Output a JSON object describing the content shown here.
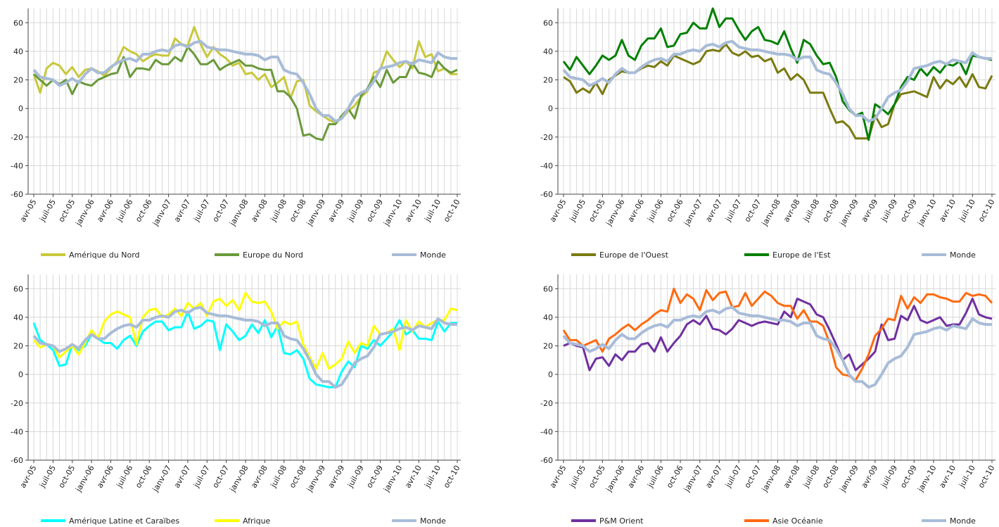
{
  "chart_data": [
    {
      "type": "line",
      "ylim": [
        -60,
        70
      ],
      "yticks": [
        -60,
        -40,
        -20,
        0,
        20,
        40,
        60
      ],
      "grid": true,
      "categories": [
        "avr-05",
        null,
        null,
        "juil-05",
        null,
        null,
        "oct-05",
        null,
        null,
        "janv-06",
        null,
        null,
        "avr-06",
        null,
        null,
        "juil-06",
        null,
        null,
        "oct-06",
        null,
        null,
        "janv-07",
        null,
        null,
        "avr-07",
        null,
        null,
        "juil-07",
        null,
        null,
        "oct-07",
        null,
        null,
        "janv-08",
        null,
        null,
        "avr-08",
        null,
        null,
        "juil-08",
        null,
        null,
        "oct-08",
        null,
        null,
        "janv-09",
        null,
        null,
        "avr-09",
        null,
        null,
        "juil-09",
        null,
        null,
        "oct-09",
        null,
        null,
        "janv-10",
        null,
        null,
        "avr-10",
        null,
        null,
        "juil-10",
        null,
        null,
        "oct-10"
      ],
      "series": [
        {
          "name": "Amérique du Nord",
          "color": "#c8c83c",
          "values": [
            24,
            11,
            28,
            32,
            30,
            24,
            29,
            22,
            27,
            28,
            26,
            23,
            28,
            33,
            43,
            40,
            38,
            33,
            36,
            38,
            37,
            37,
            49,
            45,
            44,
            57,
            45,
            36,
            43,
            38,
            35,
            30,
            32,
            24,
            25,
            20,
            24,
            15,
            18,
            22,
            7,
            19,
            20,
            2,
            -2,
            -5,
            -8,
            -10,
            -7,
            -2,
            2,
            8,
            12,
            25,
            27,
            40,
            34,
            29,
            33,
            28,
            47,
            36,
            38,
            26,
            28,
            24,
            24
          ]
        },
        {
          "name": "Europe du Nord",
          "color": "#6a9a3a",
          "values": [
            24,
            20,
            16,
            20,
            17,
            20,
            10,
            19,
            17,
            16,
            20,
            22,
            24,
            25,
            36,
            22,
            28,
            28,
            27,
            34,
            31,
            31,
            36,
            33,
            43,
            38,
            31,
            31,
            34,
            27,
            30,
            32,
            34,
            30,
            30,
            28,
            27,
            27,
            12,
            12,
            8,
            0,
            -19,
            -18,
            -21,
            -22,
            -11,
            -11,
            -5,
            0,
            -7,
            9,
            14,
            22,
            15,
            27,
            18,
            22,
            22,
            32,
            25,
            24,
            22,
            33,
            28,
            25,
            27
          ]
        },
        {
          "name": "Monde",
          "color": "#a8bcd8",
          "values": [
            27,
            22,
            21,
            20,
            16,
            18,
            21,
            18,
            24,
            28,
            25,
            25,
            29,
            32,
            34,
            35,
            33,
            38,
            38,
            40,
            41,
            40,
            44,
            45,
            43,
            46,
            47,
            43,
            42,
            41,
            41,
            40,
            39,
            38,
            38,
            37,
            34,
            36,
            36,
            27,
            25,
            24,
            18,
            10,
            0,
            -5,
            -5,
            -9,
            -7,
            0,
            8,
            11,
            13,
            19,
            28,
            29,
            30,
            32,
            33,
            31,
            34,
            33,
            32,
            39,
            36,
            35,
            35
          ]
        }
      ]
    },
    {
      "type": "line",
      "ylim": [
        -60,
        70
      ],
      "yticks": [
        -60,
        -40,
        -20,
        0,
        20,
        40,
        60
      ],
      "grid": true,
      "categories": [
        "avr-05",
        null,
        null,
        "juil-05",
        null,
        null,
        "oct-05",
        null,
        null,
        "janv-06",
        null,
        null,
        "avr-06",
        null,
        null,
        "juil-06",
        null,
        null,
        "oct-06",
        null,
        null,
        "janv-07",
        null,
        null,
        "avr-07",
        null,
        null,
        "juil-07",
        null,
        null,
        "oct-07",
        null,
        null,
        "janv-08",
        null,
        null,
        "avr-08",
        null,
        null,
        "juil-08",
        null,
        null,
        "oct-08",
        null,
        null,
        "janv-09",
        null,
        null,
        "avr-09",
        null,
        null,
        "juil-09",
        null,
        null,
        "oct-09",
        null,
        null,
        "janv-10",
        null,
        null,
        "avr-10",
        null,
        null,
        "juil-10",
        null,
        null,
        "oct-10"
      ],
      "series": [
        {
          "name": "Europe de l'Ouest",
          "color": "#7a7a10",
          "values": [
            22,
            19,
            11,
            14,
            11,
            18,
            10,
            20,
            23,
            26,
            25,
            25,
            28,
            30,
            29,
            33,
            30,
            37,
            35,
            33,
            31,
            33,
            40,
            41,
            40,
            45,
            39,
            37,
            40,
            36,
            37,
            33,
            35,
            25,
            28,
            20,
            24,
            20,
            11,
            11,
            11,
            0,
            -10,
            -9,
            -13,
            -21,
            -21,
            -21,
            -5,
            -13,
            -11,
            3,
            10,
            11,
            12,
            10,
            8,
            22,
            14,
            20,
            17,
            22,
            15,
            24,
            15,
            14,
            23
          ]
        },
        {
          "name": "Europe de l'Est",
          "color": "#008000",
          "values": [
            33,
            27,
            36,
            30,
            24,
            30,
            37,
            34,
            37,
            48,
            37,
            34,
            44,
            49,
            49,
            56,
            43,
            44,
            52,
            53,
            60,
            56,
            56,
            70,
            57,
            63,
            63,
            55,
            48,
            54,
            57,
            48,
            47,
            45,
            54,
            42,
            32,
            48,
            45,
            37,
            31,
            32,
            22,
            5,
            -1,
            -5,
            -3,
            -22,
            3,
            0,
            -4,
            3,
            15,
            22,
            20,
            28,
            23,
            29,
            25,
            31,
            30,
            33,
            24,
            37,
            36,
            35,
            34
          ]
        },
        {
          "name": "Monde",
          "color": "#a8bcd8",
          "values": [
            27,
            22,
            21,
            20,
            16,
            18,
            21,
            18,
            24,
            28,
            25,
            25,
            29,
            32,
            34,
            35,
            33,
            38,
            38,
            40,
            41,
            40,
            44,
            45,
            43,
            46,
            47,
            43,
            42,
            41,
            41,
            40,
            39,
            38,
            38,
            37,
            34,
            36,
            36,
            27,
            25,
            24,
            18,
            10,
            0,
            -5,
            -5,
            -9,
            -7,
            0,
            8,
            11,
            13,
            19,
            28,
            29,
            30,
            32,
            33,
            31,
            34,
            33,
            32,
            39,
            36,
            35,
            35
          ]
        }
      ]
    },
    {
      "type": "line",
      "ylim": [
        -60,
        70
      ],
      "yticks": [
        -60,
        -40,
        -20,
        0,
        20,
        40,
        60
      ],
      "grid": true,
      "categories": [
        "avr-05",
        null,
        null,
        "juil-05",
        null,
        null,
        "oct-05",
        null,
        null,
        "janv-06",
        null,
        null,
        "avr-06",
        null,
        null,
        "juil-06",
        null,
        null,
        "oct-06",
        null,
        null,
        "janv-07",
        null,
        null,
        "avr-07",
        null,
        null,
        "juil-07",
        null,
        null,
        "oct-07",
        null,
        null,
        "janv-08",
        null,
        null,
        "avr-08",
        null,
        null,
        "juil-08",
        null,
        null,
        "oct-08",
        null,
        null,
        "janv-09",
        null,
        null,
        "avr-09",
        null,
        null,
        "juil-09",
        null,
        null,
        "oct-09",
        null,
        null,
        "janv-10",
        null,
        null,
        "avr-10",
        null,
        null,
        "juil-10",
        null,
        null,
        "oct-10"
      ],
      "series": [
        {
          "name": "Amérique Latine et Caraïbes",
          "color": "#00ffff",
          "values": [
            36,
            24,
            21,
            17,
            6,
            7,
            21,
            17,
            20,
            28,
            25,
            22,
            22,
            18,
            24,
            27,
            20,
            30,
            34,
            37,
            37,
            31,
            33,
            33,
            44,
            32,
            34,
            38,
            37,
            17,
            35,
            30,
            24,
            27,
            35,
            29,
            38,
            26,
            34,
            15,
            14,
            17,
            11,
            -3,
            -7,
            -8,
            -9,
            -9,
            2,
            9,
            5,
            20,
            18,
            24,
            20,
            25,
            30,
            38,
            28,
            31,
            25,
            25,
            24,
            37,
            30,
            36,
            36
          ]
        },
        {
          "name": "Afrique",
          "color": "#ffff00",
          "values": [
            24,
            19,
            21,
            20,
            12,
            16,
            20,
            14,
            22,
            31,
            25,
            37,
            42,
            44,
            42,
            40,
            21,
            40,
            45,
            46,
            40,
            42,
            46,
            41,
            50,
            46,
            50,
            41,
            51,
            53,
            48,
            52,
            45,
            57,
            51,
            50,
            51,
            44,
            32,
            37,
            35,
            37,
            21,
            12,
            4,
            15,
            4,
            7,
            11,
            23,
            15,
            22,
            20,
            34,
            28,
            29,
            32,
            17,
            38,
            30,
            37,
            33,
            36,
            38,
            38,
            46,
            45
          ]
        },
        {
          "name": "Monde",
          "color": "#a8bcd8",
          "values": [
            27,
            22,
            21,
            20,
            16,
            18,
            21,
            18,
            24,
            28,
            25,
            25,
            29,
            32,
            34,
            35,
            33,
            38,
            38,
            40,
            41,
            40,
            44,
            45,
            43,
            46,
            47,
            43,
            42,
            41,
            41,
            40,
            39,
            38,
            38,
            37,
            34,
            36,
            36,
            27,
            25,
            24,
            18,
            10,
            0,
            -5,
            -5,
            -9,
            -7,
            0,
            8,
            11,
            13,
            19,
            28,
            29,
            30,
            32,
            33,
            31,
            34,
            33,
            32,
            39,
            36,
            35,
            35
          ]
        }
      ]
    },
    {
      "type": "line",
      "ylim": [
        -60,
        70
      ],
      "yticks": [
        -60,
        -40,
        -20,
        0,
        20,
        40,
        60
      ],
      "grid": true,
      "categories": [
        "avr-05",
        null,
        null,
        "juil-05",
        null,
        null,
        "oct-05",
        null,
        null,
        "janv-06",
        null,
        null,
        "avr-06",
        null,
        null,
        "juil-06",
        null,
        null,
        "oct-06",
        null,
        null,
        "janv-07",
        null,
        null,
        "avr-07",
        null,
        null,
        "juil-07",
        null,
        null,
        "oct-07",
        null,
        null,
        "janv-08",
        null,
        null,
        "avr-08",
        null,
        null,
        "juil-08",
        null,
        null,
        "oct-08",
        null,
        null,
        "janv-09",
        null,
        null,
        "avr-09",
        null,
        null,
        "juil-09",
        null,
        null,
        "oct-09",
        null,
        null,
        "janv-10",
        null,
        null,
        "avr-10",
        null,
        null,
        "juil-10",
        null,
        null,
        "oct-10"
      ],
      "series": [
        {
          "name": "P&M Orient",
          "color": "#7030a0",
          "values": [
            20,
            22,
            20,
            19,
            3,
            11,
            12,
            6,
            14,
            10,
            16,
            16,
            21,
            22,
            16,
            26,
            16,
            22,
            27,
            35,
            38,
            35,
            41,
            32,
            31,
            28,
            32,
            38,
            36,
            34,
            36,
            37,
            36,
            35,
            44,
            40,
            53,
            51,
            49,
            42,
            40,
            31,
            21,
            10,
            14,
            3,
            7,
            11,
            16,
            35,
            24,
            25,
            41,
            38,
            48,
            38,
            36,
            38,
            40,
            34,
            35,
            35,
            43,
            53,
            42,
            40,
            39
          ]
        },
        {
          "name": "Asie Océanie",
          "color": "#ff6a10",
          "values": [
            31,
            24,
            24,
            20,
            22,
            24,
            16,
            25,
            28,
            32,
            35,
            31,
            35,
            38,
            42,
            45,
            44,
            60,
            50,
            56,
            53,
            45,
            59,
            52,
            57,
            58,
            47,
            48,
            57,
            48,
            53,
            58,
            55,
            50,
            48,
            48,
            39,
            45,
            37,
            37,
            34,
            22,
            5,
            0,
            -1,
            -4,
            4,
            14,
            27,
            32,
            39,
            38,
            55,
            46,
            54,
            50,
            56,
            56,
            54,
            53,
            51,
            51,
            57,
            55,
            56,
            55,
            50
          ]
        },
        {
          "name": "Monde",
          "color": "#a8bcd8",
          "values": [
            27,
            22,
            21,
            20,
            16,
            18,
            21,
            18,
            24,
            28,
            25,
            25,
            29,
            32,
            34,
            35,
            33,
            38,
            38,
            40,
            41,
            40,
            44,
            45,
            43,
            46,
            47,
            43,
            42,
            41,
            41,
            40,
            39,
            38,
            38,
            37,
            34,
            36,
            36,
            27,
            25,
            24,
            18,
            10,
            0,
            -5,
            -5,
            -9,
            -7,
            0,
            8,
            11,
            13,
            19,
            28,
            29,
            30,
            32,
            33,
            31,
            34,
            33,
            32,
            39,
            36,
            35,
            35
          ]
        }
      ]
    }
  ]
}
